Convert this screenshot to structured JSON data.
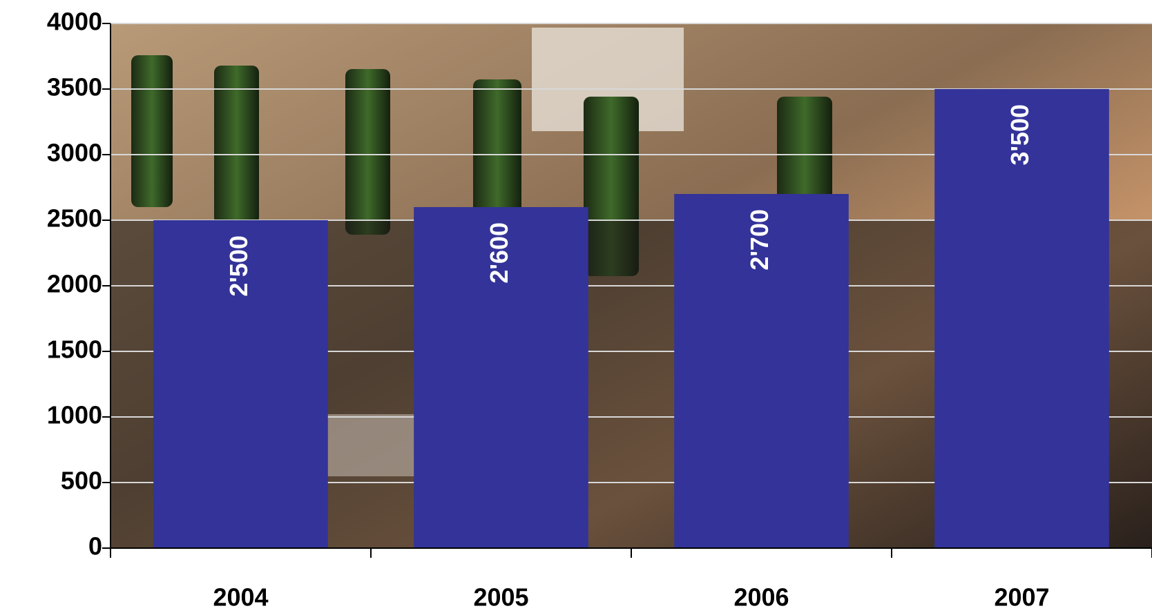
{
  "chart_data": {
    "type": "bar",
    "categories": [
      "2004",
      "2005",
      "2006",
      "2007"
    ],
    "values": [
      2500,
      2600,
      2700,
      3500
    ],
    "value_labels": [
      "2'500",
      "2'600",
      "2'700",
      "3'500"
    ],
    "color": "#333399",
    "ylim": [
      0,
      4000
    ],
    "yticks": [
      0,
      500,
      1000,
      1500,
      2000,
      2500,
      3000,
      3500,
      4000
    ],
    "grid": true
  }
}
